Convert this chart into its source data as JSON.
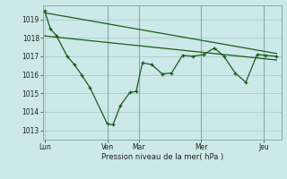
{
  "background_color": "#cce8e8",
  "grid_color": "#aacccc",
  "line_color": "#1a5c1a",
  "marker_color": "#1a5c1a",
  "xlabel_text": "Pression niveau de la mer( hPa )",
  "ylim": [
    1012.5,
    1019.75
  ],
  "ytick_values": [
    1013,
    1014,
    1015,
    1016,
    1017,
    1018,
    1019
  ],
  "xlim": [
    -0.05,
    7.55
  ],
  "xtick_positions": [
    0,
    2.0,
    3.0,
    5.0,
    7.0
  ],
  "xtick_labels": [
    "Lun",
    "Ven",
    "Mar",
    "Mer",
    "Jeu"
  ],
  "vlines_x": [
    2.0,
    3.0,
    5.0,
    7.0
  ],
  "series1_x": [
    0.0,
    0.18,
    0.38,
    0.72,
    0.95,
    1.18,
    1.45,
    2.0,
    2.18,
    2.42,
    2.72,
    2.92,
    3.12,
    3.42,
    3.75,
    4.05,
    4.4,
    4.72,
    5.08,
    5.42,
    5.72,
    6.08,
    6.42,
    6.78,
    7.05,
    7.4
  ],
  "series1_y": [
    1019.45,
    1018.5,
    1018.1,
    1017.0,
    1016.55,
    1016.0,
    1015.3,
    1013.35,
    1013.3,
    1014.35,
    1015.05,
    1015.1,
    1016.65,
    1016.55,
    1016.05,
    1016.1,
    1017.05,
    1017.0,
    1017.1,
    1017.45,
    1017.0,
    1016.1,
    1015.6,
    1017.1,
    1017.05,
    1017.0
  ],
  "series2_x": [
    0.0,
    7.4
  ],
  "series2_y": [
    1019.35,
    1017.15
  ],
  "series3_x": [
    0.0,
    7.4
  ],
  "series3_y": [
    1018.1,
    1016.8
  ]
}
